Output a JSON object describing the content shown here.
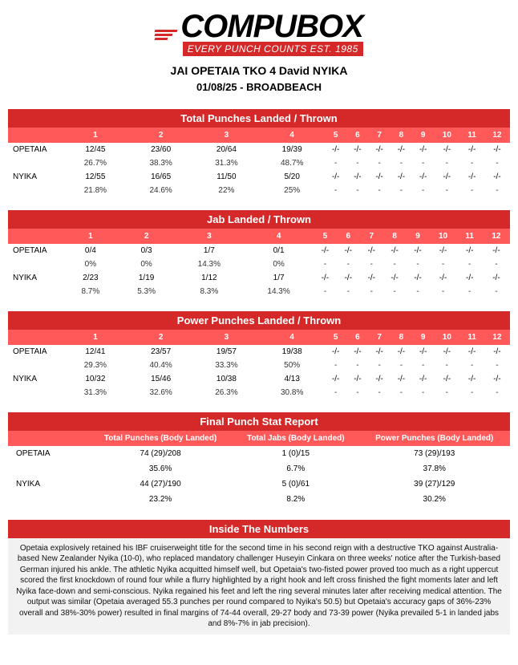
{
  "logo": {
    "main": "COMPUBOX",
    "tagline": "EVERY PUNCH COUNTS",
    "est": "EST. 1985"
  },
  "header": {
    "title": "JAI OPETAIA TKO 4 David NYIKA",
    "subtitle": "01/08/25 - BROADBEACH"
  },
  "rounds": [
    "1",
    "2",
    "3",
    "4",
    "5",
    "6",
    "7",
    "8",
    "9",
    "10",
    "11",
    "12"
  ],
  "fighters": [
    "OPETAIA",
    "NYIKA"
  ],
  "tables": {
    "total": {
      "title": "Total Punches Landed / Thrown",
      "rows": [
        {
          "name": "OPETAIA",
          "vals": [
            "12/45",
            "23/60",
            "20/64",
            "19/39",
            "-/-",
            "-/-",
            "-/-",
            "-/-",
            "-/-",
            "-/-",
            "-/-",
            "-/-"
          ],
          "pcts": [
            "26.7%",
            "38.3%",
            "31.3%",
            "48.7%",
            "-",
            "-",
            "-",
            "-",
            "-",
            "-",
            "-",
            "-"
          ]
        },
        {
          "name": "NYIKA",
          "vals": [
            "12/55",
            "16/65",
            "11/50",
            "5/20",
            "-/-",
            "-/-",
            "-/-",
            "-/-",
            "-/-",
            "-/-",
            "-/-",
            "-/-"
          ],
          "pcts": [
            "21.8%",
            "24.6%",
            "22%",
            "25%",
            "-",
            "-",
            "-",
            "-",
            "-",
            "-",
            "-",
            "-"
          ]
        }
      ]
    },
    "jab": {
      "title": "Jab Landed / Thrown",
      "rows": [
        {
          "name": "OPETAIA",
          "vals": [
            "0/4",
            "0/3",
            "1/7",
            "0/1",
            "-/-",
            "-/-",
            "-/-",
            "-/-",
            "-/-",
            "-/-",
            "-/-",
            "-/-"
          ],
          "pcts": [
            "0%",
            "0%",
            "14.3%",
            "0%",
            "-",
            "-",
            "-",
            "-",
            "-",
            "-",
            "-",
            "-"
          ]
        },
        {
          "name": "NYIKA",
          "vals": [
            "2/23",
            "1/19",
            "1/12",
            "1/7",
            "-/-",
            "-/-",
            "-/-",
            "-/-",
            "-/-",
            "-/-",
            "-/-",
            "-/-"
          ],
          "pcts": [
            "8.7%",
            "5.3%",
            "8.3%",
            "14.3%",
            "-",
            "-",
            "-",
            "-",
            "-",
            "-",
            "-",
            "-"
          ]
        }
      ]
    },
    "power": {
      "title": "Power Punches Landed / Thrown",
      "rows": [
        {
          "name": "OPETAIA",
          "vals": [
            "12/41",
            "23/57",
            "19/57",
            "19/38",
            "-/-",
            "-/-",
            "-/-",
            "-/-",
            "-/-",
            "-/-",
            "-/-",
            "-/-"
          ],
          "pcts": [
            "29.3%",
            "40.4%",
            "33.3%",
            "50%",
            "-",
            "-",
            "-",
            "-",
            "-",
            "-",
            "-",
            "-"
          ]
        },
        {
          "name": "NYIKA",
          "vals": [
            "10/32",
            "15/46",
            "10/38",
            "4/13",
            "-/-",
            "-/-",
            "-/-",
            "-/-",
            "-/-",
            "-/-",
            "-/-",
            "-/-"
          ],
          "pcts": [
            "31.3%",
            "32.6%",
            "26.3%",
            "30.8%",
            "-",
            "-",
            "-",
            "-",
            "-",
            "-",
            "-",
            "-"
          ]
        }
      ]
    }
  },
  "final": {
    "title": "Final Punch Stat Report",
    "cols": [
      "Total Punches (Body Landed)",
      "Total Jabs (Body Landed)",
      "Power Punches (Body Landed)"
    ],
    "rows": [
      {
        "name": "OPETAIA",
        "vals": [
          "74 (29)/208",
          "1 (0)/15",
          "73 (29)/193"
        ],
        "pcts": [
          "35.6%",
          "6.7%",
          "37.8%"
        ]
      },
      {
        "name": "NYIKA",
        "vals": [
          "44 (27)/190",
          "5 (0)/61",
          "39 (27)/129"
        ],
        "pcts": [
          "23.2%",
          "8.2%",
          "30.2%"
        ]
      }
    ]
  },
  "inside": {
    "title": "Inside The Numbers",
    "text": "Opetaia explosively retained his IBF cruiserweight title for the second time in his second reign with a destructive TKO against Australia-based New Zealander Nyika (10-0), who replaced mandatory challenger Huseyin Cinkara on three weeks' notice after the Turkish-based German injured his ankle. The athletic Nyika acquitted himself well, but Opetaia's two-fisted power proved too much as a right uppercut scored the first knockdown of round four while a flurry highlighted by a right hook and left cross finished the fight moments later and left Nyika face-down and semi-conscious. Nyika regained his feet and left the ring several minutes later after receiving medical attention. The output was similar (Opetaia averaged 55.3 punches per round compared to Nyika's 50.5) but Opetaia's accuracy gaps of 36%-23% overall and 38%-30% power) resulted in final margins of 74-44 overall, 29-27 body and 73-39 power (Nyika prevailed 5-1 in landed jabs and 8%-7% in jab precision)."
  }
}
